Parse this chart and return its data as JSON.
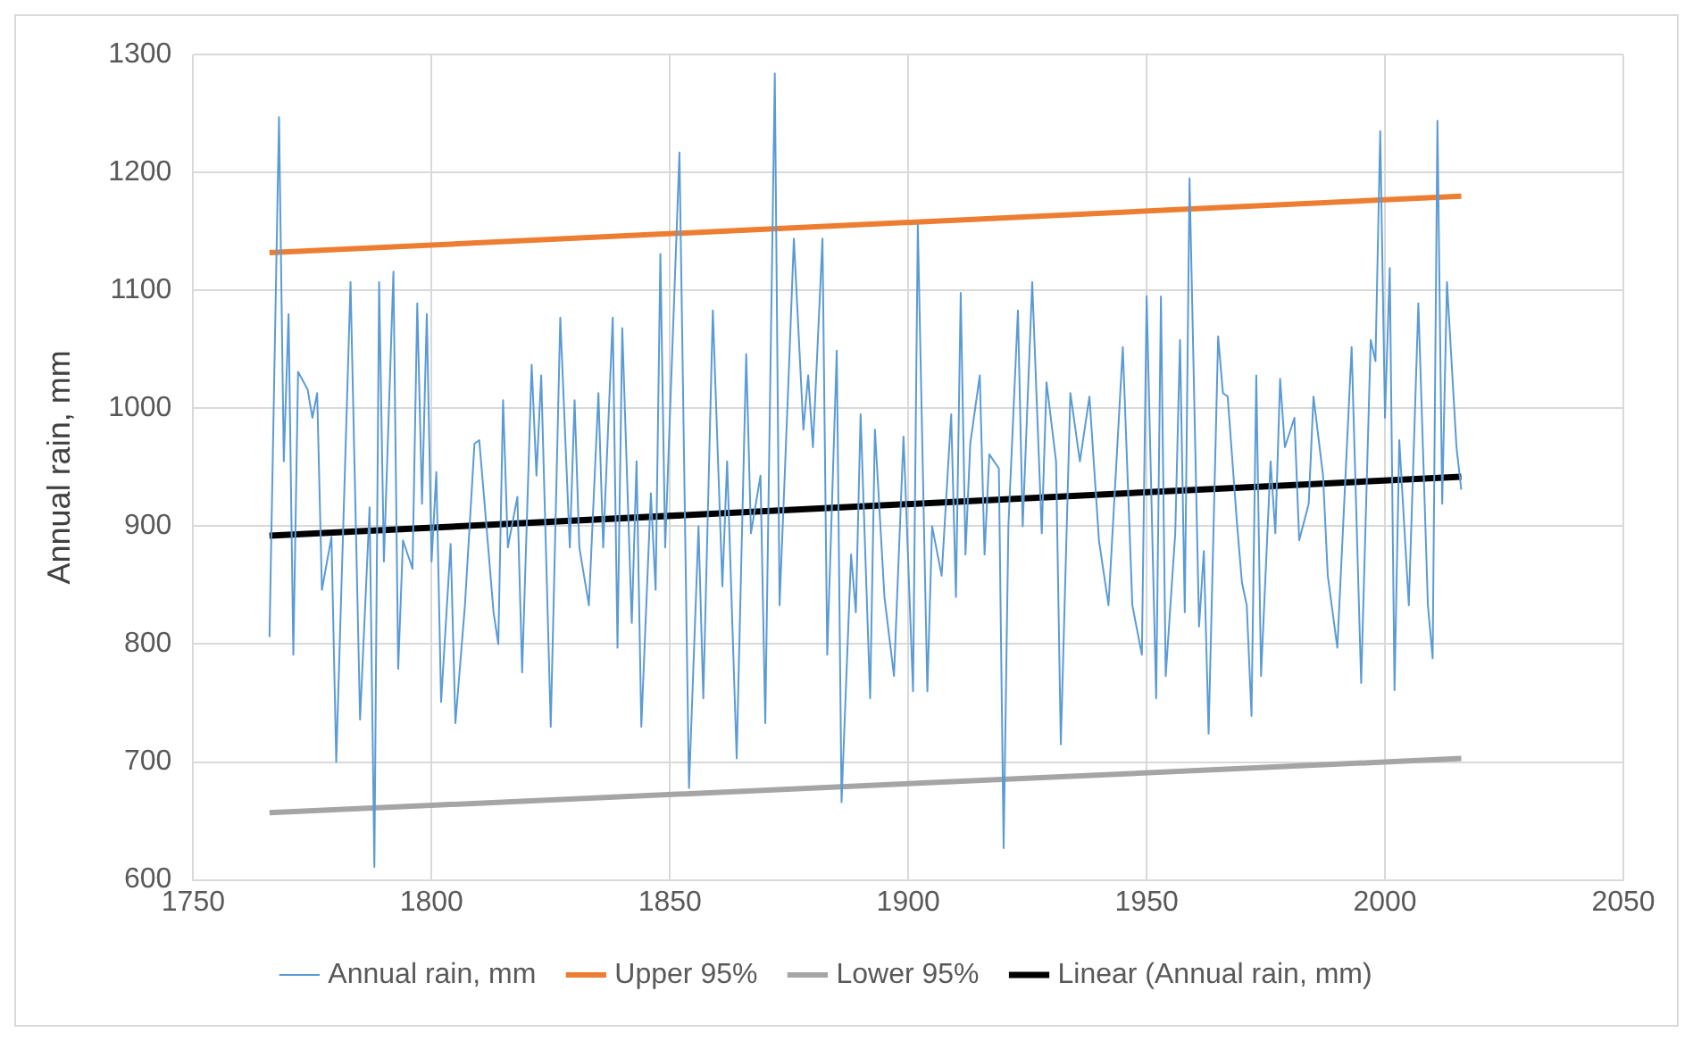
{
  "chart_data": {
    "type": "line",
    "ylabel": "Annual rain, mm",
    "xlim": [
      1750,
      2050
    ],
    "xticks": [
      1750,
      1800,
      1850,
      1900,
      1950,
      2000,
      2050
    ],
    "ylim": [
      600,
      1300
    ],
    "yticks": [
      600,
      700,
      800,
      900,
      1000,
      1100,
      1200,
      1300
    ],
    "grid": true,
    "legend": "bottom",
    "marker": "none",
    "series": [
      {
        "name": "Annual rain, mm",
        "color": "#5b9bd5",
        "x": [
          1766,
          1768,
          1769,
          1770,
          1771,
          1772,
          1774,
          1775,
          1776,
          1777,
          1779,
          1780,
          1783,
          1785,
          1787,
          1788,
          1789,
          1790,
          1792,
          1793,
          1794,
          1796,
          1797,
          1798,
          1799,
          1800,
          1801,
          1802,
          1804,
          1805,
          1807,
          1809,
          1810,
          1811,
          1813,
          1814,
          1815,
          1816,
          1818,
          1819,
          1821,
          1822,
          1823,
          1825,
          1827,
          1829,
          1830,
          1831,
          1833,
          1835,
          1836,
          1838,
          1839,
          1840,
          1842,
          1843,
          1844,
          1846,
          1847,
          1848,
          1849,
          1852,
          1854,
          1856,
          1857,
          1859,
          1861,
          1862,
          1864,
          1866,
          1867,
          1869,
          1870,
          1872,
          1873,
          1875,
          1876,
          1878,
          1879,
          1880,
          1882,
          1883,
          1885,
          1886,
          1888,
          1889,
          1890,
          1892,
          1893,
          1895,
          1897,
          1899,
          1901,
          1902,
          1904,
          1905,
          1907,
          1909,
          1910,
          1911,
          1912,
          1913,
          1915,
          1916,
          1917,
          1919,
          1920,
          1921,
          1923,
          1924,
          1926,
          1928,
          1929,
          1931,
          1932,
          1934,
          1936,
          1938,
          1940,
          1942,
          1945,
          1947,
          1949,
          1950,
          1952,
          1953,
          1954,
          1956,
          1957,
          1958,
          1959,
          1961,
          1962,
          1963,
          1965,
          1966,
          1967,
          1969,
          1970,
          1971,
          1972,
          1973,
          1974,
          1976,
          1977,
          1978,
          1979,
          1981,
          1982,
          1984,
          1985,
          1987,
          1988,
          1990,
          1993,
          1995,
          1997,
          1998,
          1999,
          2000,
          2001,
          2002,
          2003,
          2005,
          2007,
          2009,
          2010,
          2011,
          2012,
          2013,
          2015,
          2016
        ],
        "values": [
          806,
          1247,
          955,
          1080,
          791,
          1031,
          1016,
          992,
          1013,
          846,
          891,
          700,
          1107,
          736,
          916,
          611,
          1107,
          870,
          1116,
          779,
          888,
          864,
          1089,
          919,
          1080,
          870,
          946,
          751,
          885,
          733,
          833,
          970,
          973,
          925,
          827,
          800,
          1007,
          882,
          925,
          776,
          1037,
          943,
          1028,
          730,
          1077,
          882,
          1007,
          882,
          833,
          1013,
          882,
          1077,
          797,
          1068,
          818,
          955,
          730,
          928,
          846,
          1131,
          882,
          1217,
          678,
          900,
          754,
          1083,
          849,
          955,
          703,
          1046,
          894,
          943,
          733,
          1284,
          833,
          1037,
          1144,
          982,
          1028,
          967,
          1144,
          791,
          1049,
          666,
          876,
          827,
          995,
          754,
          982,
          840,
          773,
          976,
          760,
          1156,
          760,
          900,
          858,
          995,
          840,
          1098,
          876,
          970,
          1028,
          876,
          961,
          949,
          627,
          900,
          1083,
          900,
          1107,
          894,
          1022,
          955,
          715,
          1013,
          955,
          1010,
          888,
          833,
          1052,
          833,
          791,
          1095,
          754,
          1095,
          773,
          894,
          1058,
          827,
          1195,
          815,
          879,
          724,
          1061,
          1013,
          1010,
          900,
          852,
          833,
          739,
          1028,
          773,
          955,
          894,
          1025,
          967,
          992,
          888,
          919,
          1010,
          943,
          858,
          797,
          1052,
          767,
          1058,
          1040,
          1235,
          992,
          1119,
          761,
          973,
          833,
          1089,
          833,
          788,
          1244,
          919,
          1107,
          967,
          931
        ]
      },
      {
        "name": "Upper 95%",
        "color": "#ed7d31",
        "x": [
          1766,
          2016
        ],
        "values": [
          1132,
          1180
        ]
      },
      {
        "name": "Lower 95%",
        "color": "#a5a5a5",
        "x": [
          1766,
          2016
        ],
        "values": [
          657,
          703
        ]
      },
      {
        "name": "Linear (Annual rain, mm)",
        "color": "#000000",
        "x": [
          1766,
          2016
        ],
        "values": [
          892,
          942
        ]
      }
    ]
  }
}
